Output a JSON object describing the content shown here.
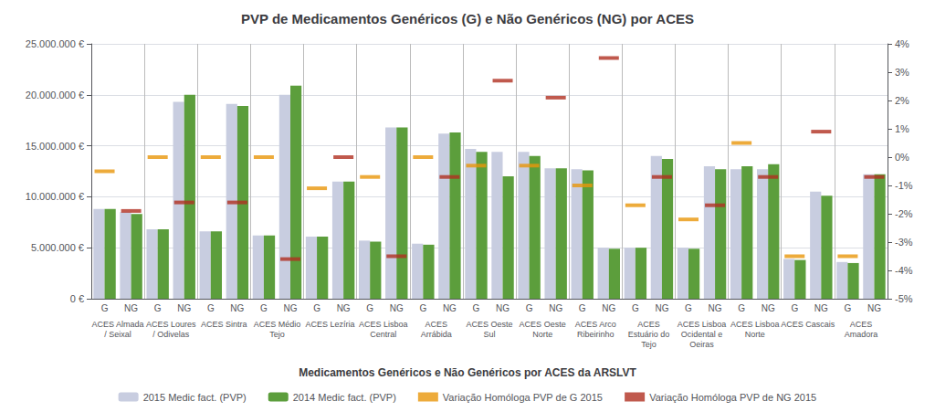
{
  "chart_data": {
    "type": "bar",
    "title": "PVP de Medicamentos Genéricos (G) e Não Genéricos (NG) por ACES",
    "subtitle": "Medicamentos Genéricos e Não Genéricos por ACES da ARSLVT",
    "categories": [
      "G",
      "NG",
      "G",
      "NG",
      "G",
      "NG",
      "G",
      "NG",
      "G",
      "NG",
      "G",
      "NG",
      "G",
      "NG",
      "G",
      "NG",
      "G",
      "NG",
      "G",
      "NG",
      "G",
      "NG",
      "G",
      "NG",
      "G",
      "NG",
      "G",
      "NG",
      "G",
      "NG"
    ],
    "group_labels": [
      "ACES Almada\n/ Seixal",
      "ACES Loures\n/ Odivelas",
      "ACES Sintra",
      "ACES Médio\nTejo",
      "ACES Lezíria",
      "ACES Lisboa\nCentral",
      "ACES\nArrábida",
      "ACES Oeste\nSul",
      "ACES Oeste\nNorte",
      "ACES Arco\nRibeirinho",
      "ACES\nEstuário do\nTejo",
      "ACES Lisboa\nOcidental e\nOeiras",
      "ACES Lisboa\nNorte",
      "ACES Cascais",
      "ACES\nAmadora"
    ],
    "series": [
      {
        "name": "2015 Medic fact. (PVP)",
        "type": "bar",
        "color": "#c8cde0",
        "values": [
          8800000,
          8500000,
          6800000,
          19300000,
          6600000,
          19100000,
          6200000,
          20000000,
          6100000,
          11500000,
          5700000,
          16800000,
          5400000,
          16200000,
          14700000,
          14400000,
          14400000,
          12800000,
          12700000,
          5000000,
          5000000,
          14000000,
          5000000,
          13000000,
          12700000,
          12700000,
          3900000,
          10500000,
          3600000,
          12200000
        ]
      },
      {
        "name": "2014 Medic fact. (PVP)",
        "type": "bar",
        "color": "#5c9e3c",
        "values": [
          8800000,
          8300000,
          6800000,
          20000000,
          6600000,
          18900000,
          6200000,
          20900000,
          6100000,
          11500000,
          5600000,
          16800000,
          5300000,
          16300000,
          14400000,
          12000000,
          14000000,
          12800000,
          12600000,
          4900000,
          5000000,
          13700000,
          4900000,
          12700000,
          13000000,
          13200000,
          3800000,
          10100000,
          3500000,
          12200000
        ]
      },
      {
        "name": "Variação Homóloga PVP de G 2015",
        "type": "scatter",
        "marker": "dash",
        "axis": "y2",
        "color": "#e8960a",
        "values": [
          -0.005,
          null,
          0.0,
          null,
          0.0,
          null,
          0.0,
          null,
          -0.011,
          null,
          -0.007,
          null,
          0.0,
          null,
          -0.003,
          null,
          -0.003,
          null,
          -0.01,
          null,
          -0.017,
          null,
          -0.022,
          null,
          0.005,
          null,
          -0.035,
          null,
          -0.035,
          null
        ]
      },
      {
        "name": "Variação Homóloga PVP de NG 2015",
        "type": "scatter",
        "marker": "dash",
        "axis": "y2",
        "color": "#b03020",
        "values": [
          null,
          -0.019,
          null,
          -0.016,
          null,
          -0.016,
          null,
          -0.036,
          null,
          0.0,
          null,
          -0.035,
          null,
          -0.007,
          null,
          0.027,
          null,
          0.021,
          null,
          0.035,
          null,
          -0.007,
          null,
          -0.017,
          null,
          -0.007,
          null,
          0.009,
          null,
          -0.007
        ]
      }
    ],
    "ylim": [
      0,
      25000000
    ],
    "yticks": [
      {
        "value": 0,
        "label": "0 €"
      },
      {
        "value": 5000000,
        "label": "5.000.000 €"
      },
      {
        "value": 10000000,
        "label": "10.000.000 €"
      },
      {
        "value": 15000000,
        "label": "15.000.000 €"
      },
      {
        "value": 20000000,
        "label": "20.000.000 €"
      },
      {
        "value": 25000000,
        "label": "25.000.000 €"
      }
    ],
    "y2lim": [
      -0.05,
      0.04
    ],
    "y2ticks": [
      {
        "value": -0.05,
        "label": "-5%"
      },
      {
        "value": -0.04,
        "label": "-4%"
      },
      {
        "value": -0.03,
        "label": "-3%"
      },
      {
        "value": -0.02,
        "label": "-2%"
      },
      {
        "value": -0.01,
        "label": "-1%"
      },
      {
        "value": 0.0,
        "label": "0%"
      },
      {
        "value": 0.01,
        "label": "1%"
      },
      {
        "value": 0.02,
        "label": "2%"
      },
      {
        "value": 0.03,
        "label": "3%"
      },
      {
        "value": 0.04,
        "label": "4%"
      }
    ],
    "grid": true,
    "legend": "bottom"
  }
}
